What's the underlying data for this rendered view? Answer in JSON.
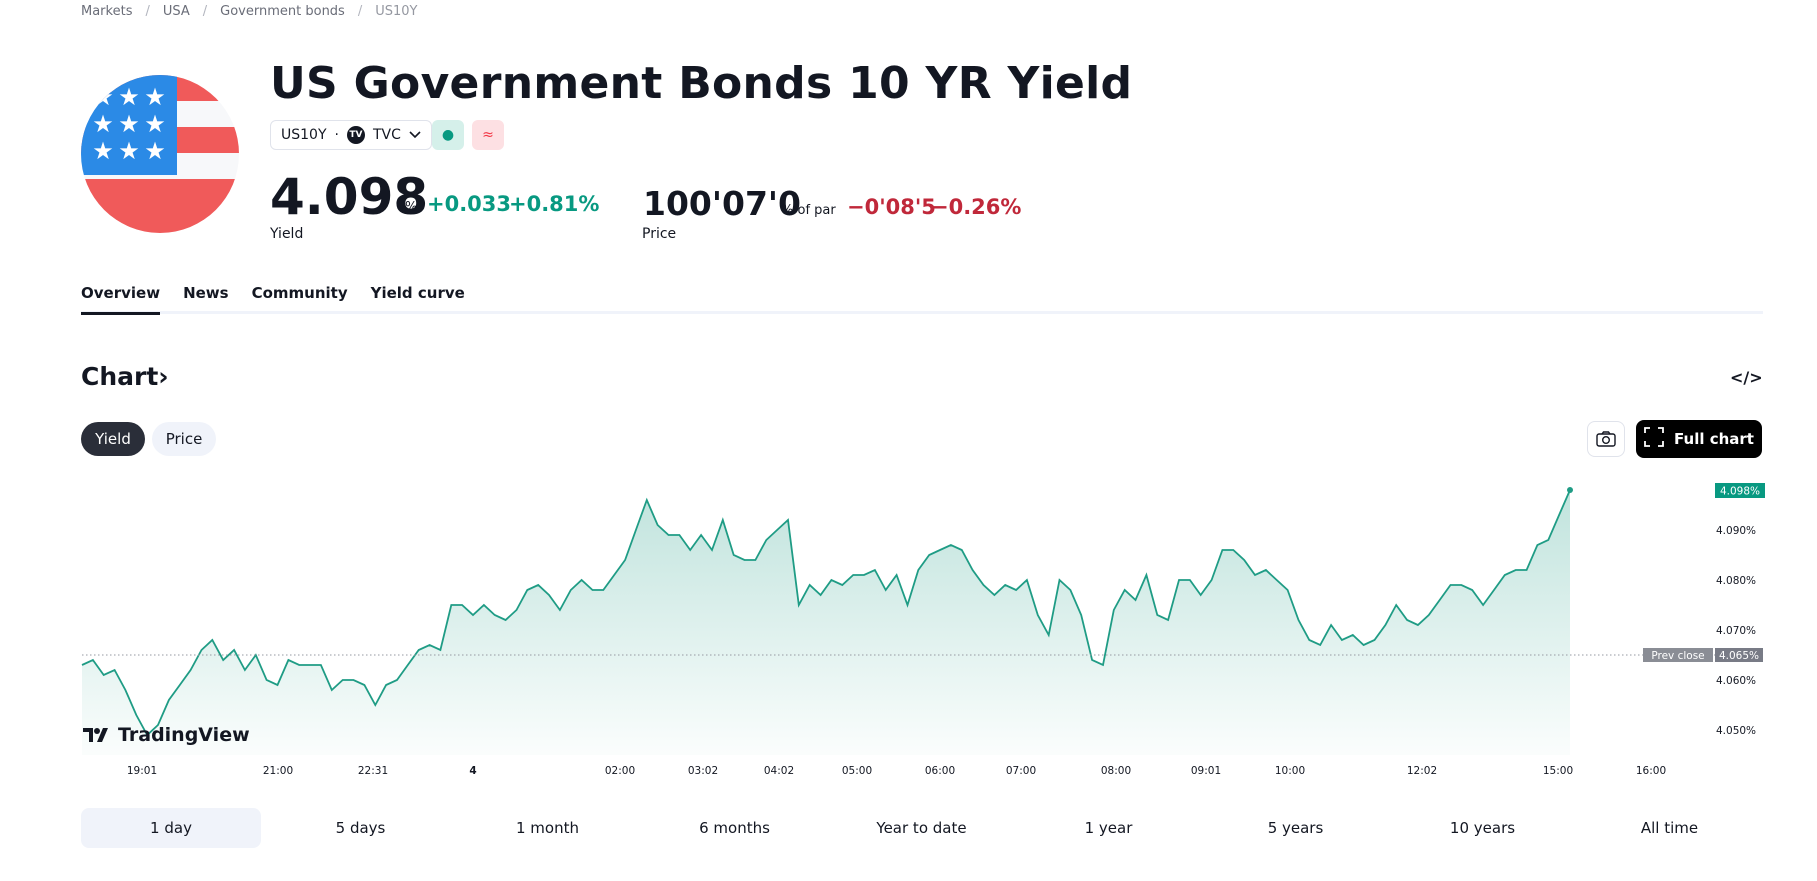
{
  "breadcrumb": [
    "Markets",
    "USA",
    "Government bonds",
    "US10Y"
  ],
  "header": {
    "title": "US Government Bonds 10 YR Yield",
    "symbol": "US10Y",
    "exchange": "TVC",
    "exchange_logo": "TV",
    "badge_market_open": "●",
    "badge_delayed": "≈"
  },
  "yield_quote": {
    "value": "4.098",
    "unit": "%",
    "change": "+0.033",
    "change_pct": "+0.81%",
    "label": "Yield"
  },
  "price_quote": {
    "value": "100'07'0",
    "unit": "% of par",
    "change": "−0'08'5",
    "change_pct": "−0.26%",
    "label": "Price"
  },
  "tabs": [
    "Overview",
    "News",
    "Community",
    "Yield curve"
  ],
  "chart_section": {
    "title": "Chart",
    "title_arrow": "›",
    "embed_icon": "</>",
    "segments": [
      "Yield",
      "Price"
    ],
    "full_chart_label": "Full chart",
    "brand": "TradingView"
  },
  "colors": {
    "up": "#089981",
    "down": "#c0283a",
    "line": "#1f9c85"
  },
  "chart_data": {
    "type": "area",
    "x_ticks": [
      "19:01",
      "21:00",
      "22:31",
      "4",
      "02:00",
      "03:02",
      "04:02",
      "05:00",
      "06:00",
      "07:00",
      "08:00",
      "09:01",
      "10:00",
      "12:02",
      "15:00",
      "16:00"
    ],
    "y_ticks": [
      "4.090%",
      "4.080%",
      "4.070%",
      "4.060%",
      "4.050%"
    ],
    "ylim": [
      4.045,
      4.1
    ],
    "last_value_label": "4.098%",
    "prev_close_label": "Prev close",
    "prev_close_value_label": "4.065%",
    "prev_close": 4.065,
    "series": [
      {
        "values": [
          4.063,
          4.064,
          4.061,
          4.062,
          4.058,
          4.053,
          4.049,
          4.051,
          4.056,
          4.059,
          4.062,
          4.066,
          4.068,
          4.064,
          4.066,
          4.062,
          4.065,
          4.06,
          4.059,
          4.064,
          4.063,
          4.063,
          4.063,
          4.058,
          4.06,
          4.06,
          4.059,
          4.055,
          4.059,
          4.06,
          4.063,
          4.066,
          4.067,
          4.066,
          4.075,
          4.075,
          4.073,
          4.075,
          4.073,
          4.072,
          4.074,
          4.078,
          4.079,
          4.077,
          4.074,
          4.078,
          4.08,
          4.078,
          4.078,
          4.081,
          4.084,
          4.09,
          4.096,
          4.091,
          4.089,
          4.089,
          4.086,
          4.089,
          4.086,
          4.092,
          4.085,
          4.084,
          4.084,
          4.088,
          4.09,
          4.092,
          4.075,
          4.079,
          4.077,
          4.08,
          4.079,
          4.081,
          4.081,
          4.082,
          4.078,
          4.081,
          4.075,
          4.082,
          4.085,
          4.086,
          4.087,
          4.086,
          4.082,
          4.079,
          4.077,
          4.079,
          4.078,
          4.08,
          4.073,
          4.069,
          4.08,
          4.078,
          4.073,
          4.064,
          4.063,
          4.074,
          4.078,
          4.076,
          4.081,
          4.073,
          4.072,
          4.08,
          4.08,
          4.077,
          4.08,
          4.086,
          4.086,
          4.084,
          4.081,
          4.082,
          4.08,
          4.078,
          4.072,
          4.068,
          4.067,
          4.071,
          4.068,
          4.069,
          4.067,
          4.068,
          4.071,
          4.075,
          4.072,
          4.071,
          4.073,
          4.076,
          4.079,
          4.079,
          4.078,
          4.075,
          4.078,
          4.081,
          4.082,
          4.082,
          4.087,
          4.088,
          4.093,
          4.098
        ]
      }
    ]
  }
}
